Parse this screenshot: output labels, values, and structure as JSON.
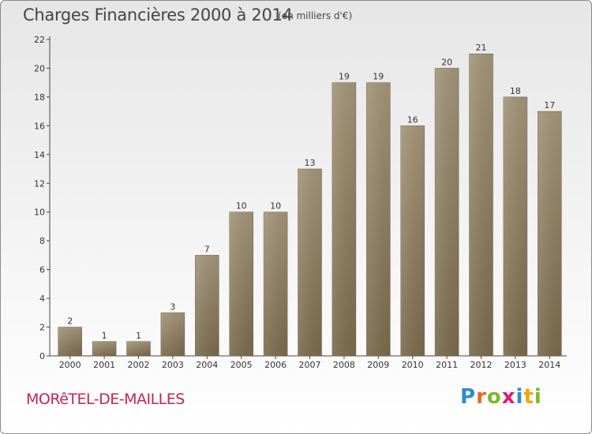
{
  "title": "Charges Financières 2000 à 2014",
  "subtitle": "(en milliers d'€)",
  "town": "MORêTEL-DE-MAILLES",
  "logo": {
    "text": "Proxiti",
    "colors": [
      "#2d8ccf",
      "#e86a1d",
      "#7bbb2c",
      "#d81f6d",
      "#2d8ccf",
      "#f0a800",
      "#7bbb2c"
    ]
  },
  "colors": {
    "bar_light": "#a39478",
    "bar_dark": "#7a6a4c",
    "axis": "#444444",
    "grid_text": "#333333"
  },
  "chart_data": {
    "type": "bar",
    "categories": [
      "2000",
      "2001",
      "2002",
      "2003",
      "2004",
      "2005",
      "2006",
      "2007",
      "2008",
      "2009",
      "2010",
      "2011",
      "2012",
      "2013",
      "2014"
    ],
    "values": [
      2,
      1,
      1,
      3,
      7,
      10,
      10,
      13,
      19,
      19,
      16,
      20,
      21,
      18,
      17
    ],
    "ylim": [
      0,
      22
    ],
    "yticks": [
      0,
      2,
      4,
      6,
      8,
      10,
      12,
      14,
      16,
      18,
      20,
      22
    ],
    "grid": false,
    "data_labels": true
  }
}
